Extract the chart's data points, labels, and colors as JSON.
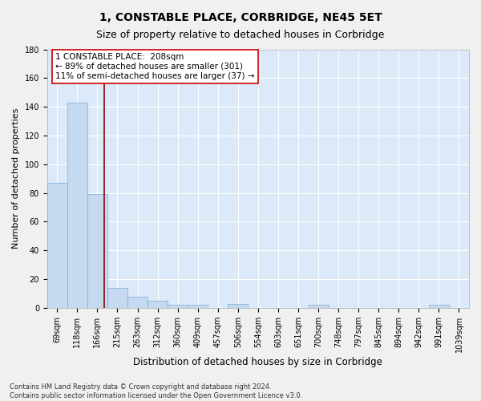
{
  "title": "1, CONSTABLE PLACE, CORBRIDGE, NE45 5ET",
  "subtitle": "Size of property relative to detached houses in Corbridge",
  "xlabel": "Distribution of detached houses by size in Corbridge",
  "ylabel": "Number of detached properties",
  "bin_labels": [
    "69sqm",
    "118sqm",
    "166sqm",
    "215sqm",
    "263sqm",
    "312sqm",
    "360sqm",
    "409sqm",
    "457sqm",
    "506sqm",
    "554sqm",
    "603sqm",
    "651sqm",
    "700sqm",
    "748sqm",
    "797sqm",
    "845sqm",
    "894sqm",
    "942sqm",
    "991sqm",
    "1039sqm"
  ],
  "bar_heights": [
    87,
    143,
    79,
    14,
    8,
    5,
    2,
    2,
    0,
    3,
    0,
    0,
    0,
    2,
    0,
    0,
    0,
    0,
    0,
    2,
    0
  ],
  "bar_color": "#c5d9f0",
  "bar_edge_color": "#7aadd4",
  "background_color": "#dce9f8",
  "grid_color": "#ffffff",
  "vline_color": "#8b0000",
  "annotation_text": "1 CONSTABLE PLACE:  208sqm\n← 89% of detached houses are smaller (301)\n11% of semi-detached houses are larger (37) →",
  "annotation_box_color": "#ffffff",
  "annotation_box_edge_color": "#cc0000",
  "ylim": [
    0,
    180
  ],
  "yticks": [
    0,
    20,
    40,
    60,
    80,
    100,
    120,
    140,
    160,
    180
  ],
  "footer_text": "Contains HM Land Registry data © Crown copyright and database right 2024.\nContains public sector information licensed under the Open Government Licence v3.0.",
  "title_fontsize": 10,
  "subtitle_fontsize": 9,
  "xlabel_fontsize": 8.5,
  "ylabel_fontsize": 8,
  "tick_fontsize": 7,
  "annotation_fontsize": 7.5,
  "footer_fontsize": 6
}
